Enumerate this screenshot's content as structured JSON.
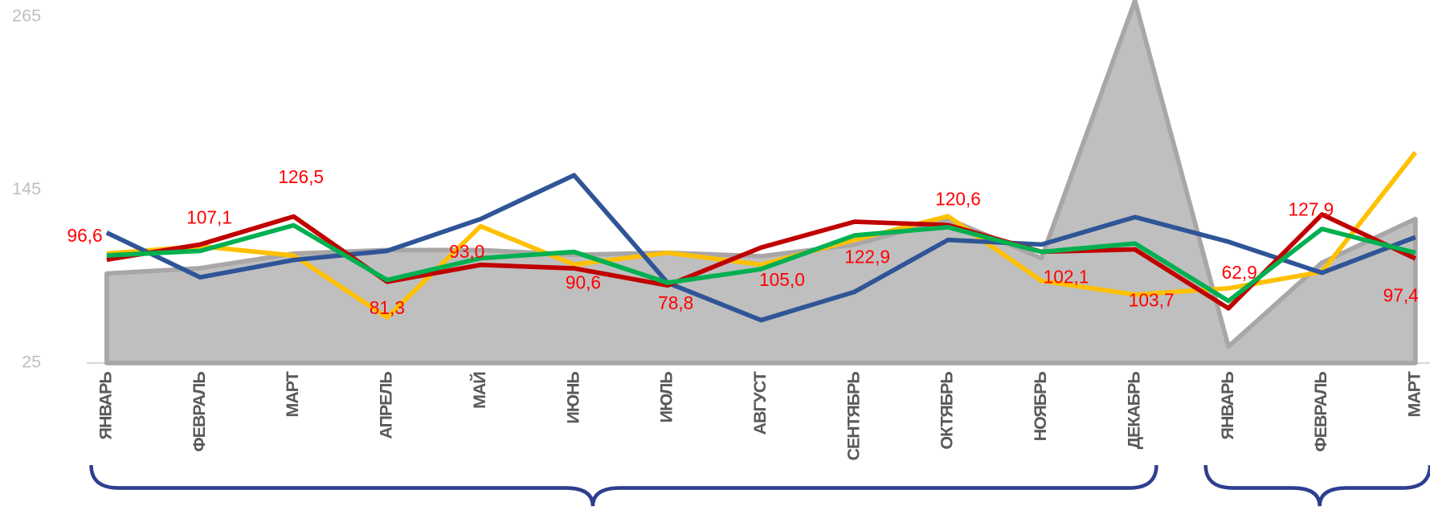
{
  "chart_data": {
    "type": "line",
    "categories": [
      "ЯНВАРЬ",
      "ФЕВРАЛЬ",
      "МАРТ",
      "АПРЕЛЬ",
      "МАЙ",
      "ИЮНЬ",
      "ИЮЛЬ",
      "АВГУСТ",
      "СЕНТЯБРЬ",
      "ОКТЯБРЬ",
      "НОЯБРЬ",
      "ДЕКАБРЬ",
      "ЯНВАРЬ",
      "ФЕВРАЛЬ",
      "МАРТ"
    ],
    "ylim": [
      25,
      265
    ],
    "yticks": [
      25,
      145,
      265
    ],
    "grid": false,
    "series": [
      {
        "kind": "area",
        "color": "#bfbfbf",
        "values": [
          87,
          90.7,
          100.8,
          103.3,
          103.3,
          100,
          101.4,
          99,
          107,
          124.8,
          97.6,
          276,
          36.4,
          94.5,
          124.8
        ]
      },
      {
        "color": "#ffc000",
        "values": [
          100.8,
          105.9,
          99.5,
          56.6,
          119.8,
          93.2,
          101.4,
          93.2,
          110.3,
          126.7,
          81.9,
          72.4,
          76.8,
          88.2,
          170.9
        ]
      },
      {
        "color": "#2f5597",
        "values": [
          115.3,
          84.4,
          96.4,
          102.7,
          124.8,
          155.1,
          80.6,
          54.7,
          74.3,
          110.3,
          107.1,
          126.1,
          109,
          87.5,
          112.2
        ]
      },
      {
        "color": "#c00000",
        "values": [
          96.6,
          107.1,
          126.5,
          81.3,
          93.0,
          90.6,
          78.8,
          105.0,
          122.9,
          120.6,
          102.1,
          103.7,
          62.9,
          127.9,
          97.4
        ],
        "value_labels": [
          "96,6",
          "107,1",
          "126,5",
          "81,3",
          "93,0",
          "90,6",
          "78,8",
          "105,0",
          "122,9",
          "120,6",
          "102,1",
          "103,7",
          "62,9",
          "127,9",
          "97,4"
        ]
      },
      {
        "color": "#00b050",
        "values": [
          99.5,
          102.7,
          120.4,
          82.5,
          97.6,
          102,
          80.6,
          90.1,
          113.4,
          119.1,
          102,
          107.8,
          68,
          117.9,
          101.4
        ]
      }
    ]
  }
}
